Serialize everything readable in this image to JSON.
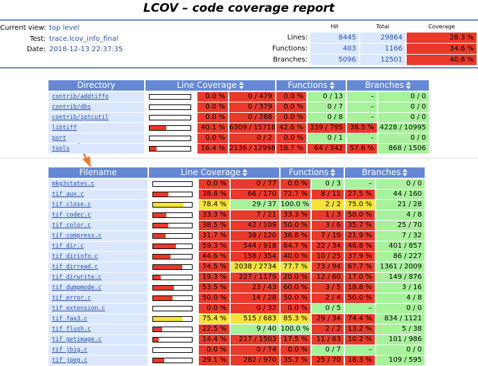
{
  "title": "LCOV – code coverage report",
  "header": {
    "info": [
      {
        "label": "Current view:",
        "value": "top level"
      },
      {
        "label": "Test:",
        "value": "trace.lcov_info_final"
      },
      {
        "label": "Date:",
        "value": "2018-12-13 22:37:35"
      }
    ],
    "summary": {
      "columns": [
        "Hit",
        "Total",
        "Coverage"
      ],
      "rows": [
        {
          "label": "Lines:",
          "hit": 8445,
          "total": 29864,
          "coverage": "28.3 %"
        },
        {
          "label": "Functions:",
          "hit": 403,
          "total": 1166,
          "coverage": "34.6 %"
        },
        {
          "label": "Branches:",
          "hit": 5096,
          "total": 12501,
          "coverage": "40.8 %"
        }
      ]
    }
  },
  "directory_table": {
    "columns": [
      "Directory",
      "Line Coverage",
      "Functions",
      "Branches"
    ],
    "rows": [
      [
        "contrib/addtiffo",
        "0.0 %",
        "0 / 479",
        "0.0 %",
        "0 / 13",
        "–",
        "0 / 0"
      ],
      [
        "contrib/dbs",
        "0.0 %",
        "0 / 379",
        "0.0 %",
        "0 / 7",
        "–",
        "0 / 0"
      ],
      [
        "contrib/iptcutil",
        "0.0 %",
        "0 / 288",
        "0.0 %",
        "0 / 8",
        "–",
        "0 / 0"
      ],
      [
        "libtiff",
        "40.1 %",
        "6309 / 15718",
        "42.6 %",
        "339 / 795",
        "38.5 %",
        "4228 / 10995"
      ],
      [
        "port",
        "0.0 %",
        "0 / 2",
        "0.0 %",
        "0 / 1",
        "–",
        "0 / 0"
      ],
      [
        "tools",
        "16.4 %",
        "2136 / 12998",
        "18.7 %",
        "64 / 342",
        "57.6 %",
        "868 / 1506"
      ]
    ]
  },
  "file_table": {
    "columns": [
      "Filename",
      "Line Coverage",
      "Functions",
      "Branches"
    ],
    "rows": [
      [
        "mkg3states.c",
        "0.0 %",
        "0 / 77",
        "0.0 %",
        "0 / 3",
        "–",
        "0 / 0"
      ],
      [
        "tif_aux.c",
        "38.8 %",
        "66 / 170",
        "72.7 %",
        "8 / 11",
        "27.5 %",
        "44 / 160"
      ],
      [
        "tif_close.c",
        "78.4 %",
        "29 / 37",
        "100.0 %",
        "2 / 2",
        "75.0 %",
        "21 / 28"
      ],
      [
        "tif_codec.c",
        "33.3 %",
        "7 / 21",
        "33.3 %",
        "1 / 3",
        "50.0 %",
        "4 / 8"
      ],
      [
        "tif_color.c",
        "38.5 %",
        "42 / 109",
        "50.0 %",
        "3 / 6",
        "35.7 %",
        "25 / 70"
      ],
      [
        "tif_compress.c",
        "31.7 %",
        "38 / 120",
        "36.8 %",
        "7 / 19",
        "21.9 %",
        "7 / 32"
      ],
      [
        "tif_dir.c",
        "59.3 %",
        "544 / 918",
        "64.7 %",
        "22 / 34",
        "46.8 %",
        "401 / 857"
      ],
      [
        "tif_dirinfo.c",
        "44.6 %",
        "158 / 354",
        "40.0 %",
        "10 / 25",
        "37.9 %",
        "86 / 227"
      ],
      [
        "tif_dirread.c",
        "74.5 %",
        "2038 / 2734",
        "77.7 %",
        "73 / 94",
        "67.7 %",
        "1361 / 2009"
      ],
      [
        "tif_dirwrite.c",
        "19.3 %",
        "227 / 1179",
        "20.0 %",
        "12 / 60",
        "17.0 %",
        "149 / 876"
      ],
      [
        "tif_dumpmode.c",
        "53.5 %",
        "23 / 43",
        "60.0 %",
        "3 / 5",
        "18.8 %",
        "3 / 16"
      ],
      [
        "tif_error.c",
        "50.0 %",
        "14 / 28",
        "50.0 %",
        "2 / 4",
        "50.0 %",
        "4 / 8"
      ],
      [
        "tif_extension.c",
        "0.0 %",
        "0 / 32",
        "0.0 %",
        "0 / 5",
        "–",
        "0 / 0"
      ],
      [
        "tif_fax3.c",
        "75.4 %",
        "515 / 683",
        "85.3 %",
        "29 / 34",
        "74.4 %",
        "834 / 1121"
      ],
      [
        "tif_flush.c",
        "22.5 %",
        "9 / 40",
        "100.0 %",
        "2 / 2",
        "13.2 %",
        "5 / 38"
      ],
      [
        "tif_getimage.c",
        "14.4 %",
        "217 / 1503",
        "17.5 %",
        "11 / 63",
        "10.2 %",
        "101 / 986"
      ],
      [
        "tif_jbig.c",
        "0.0 %",
        "0 / 74",
        "0.0 %",
        "0 / 7",
        "–",
        "0 / 0"
      ],
      [
        "tif_jpeg.c",
        "29.1 %",
        "282 / 970",
        "35.7 %",
        "25 / 70",
        "18.3 %",
        "109 / 595"
      ]
    ]
  }
}
